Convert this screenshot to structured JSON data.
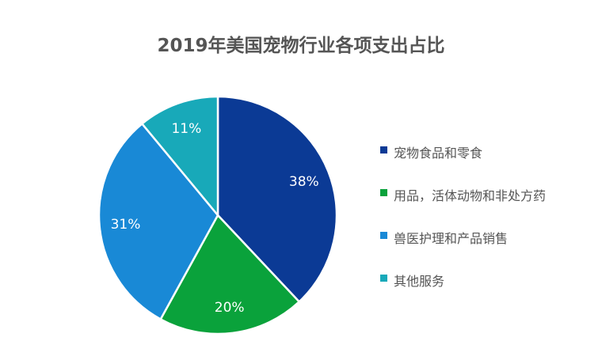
{
  "chart_data": {
    "type": "pie",
    "title": "2019年美国宠物行业各项支出占比",
    "categories": [
      "宠物食品和零食",
      "用品，活体动物和非处方药",
      "兽医护理和产品销售",
      "其他服务"
    ],
    "values": [
      38,
      20,
      31,
      11
    ],
    "labels": [
      "38%",
      "20%",
      "31%",
      "11%"
    ],
    "colors": [
      "#0b3a95",
      "#0aa23b",
      "#1989d6",
      "#18a9b9"
    ],
    "legend_position": "right"
  }
}
